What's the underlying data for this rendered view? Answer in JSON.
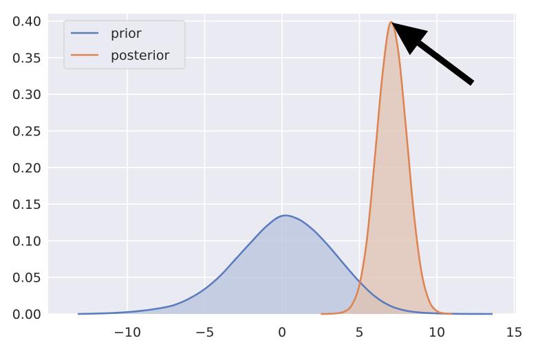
{
  "chart_data": {
    "type": "area",
    "xlim": [
      -14,
      15
    ],
    "ylim": [
      0,
      0.41
    ],
    "x_ticks": [
      -10,
      -5,
      0,
      5,
      10,
      15
    ],
    "x_tick_labels": [
      "−10",
      "−5",
      "0",
      "5",
      "10",
      "15"
    ],
    "y_ticks": [
      0.0,
      0.05,
      0.1,
      0.15,
      0.2,
      0.25,
      0.3,
      0.35,
      0.4
    ],
    "y_tick_labels": [
      "0.00",
      "0.05",
      "0.10",
      "0.15",
      "0.20",
      "0.25",
      "0.30",
      "0.35",
      "0.40"
    ],
    "grid": true,
    "legend_position": "top-left",
    "series": [
      {
        "name": "prior",
        "color": "#5b7bbf",
        "fill": "#b8c3de",
        "x": [
          -13.2,
          -12,
          -11,
          -10,
          -9,
          -8,
          -7,
          -6,
          -5,
          -4,
          -3,
          -2,
          -1,
          0,
          1,
          2,
          3,
          4,
          5,
          6,
          7,
          8,
          9,
          10,
          11,
          12,
          13.6
        ],
        "y": [
          0.0,
          0.0005,
          0.0012,
          0.0025,
          0.0045,
          0.0075,
          0.012,
          0.021,
          0.034,
          0.052,
          0.075,
          0.098,
          0.12,
          0.134,
          0.13,
          0.115,
          0.093,
          0.068,
          0.044,
          0.024,
          0.011,
          0.0045,
          0.0018,
          0.0008,
          0.0003,
          0.0001,
          0.0
        ]
      },
      {
        "name": "posterior",
        "color": "#dd8452",
        "fill": "#e0c1b0",
        "x": [
          2.5,
          3,
          3.5,
          4,
          4.5,
          5,
          5.5,
          6,
          6.5,
          7,
          7.5,
          8,
          8.5,
          9,
          9.5,
          10,
          10.5,
          11
        ],
        "y": [
          0.0,
          0.0002,
          0.0008,
          0.003,
          0.012,
          0.04,
          0.105,
          0.215,
          0.33,
          0.398,
          0.36,
          0.255,
          0.14,
          0.058,
          0.018,
          0.004,
          0.0008,
          0.0
        ]
      }
    ],
    "annotation": {
      "type": "arrow",
      "points_to": [
        6.8,
        0.4
      ],
      "from": [
        12.3,
        0.315
      ],
      "color": "#000000"
    }
  }
}
